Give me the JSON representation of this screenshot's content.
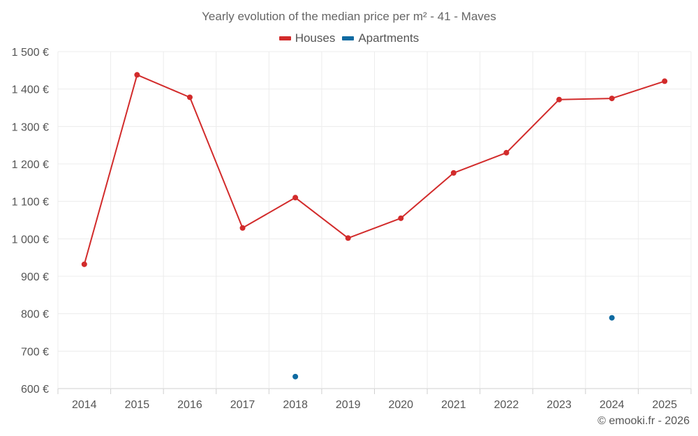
{
  "chart_data": {
    "type": "line",
    "title": "Yearly evolution of the median price per m² - 41 - Maves",
    "categories": [
      "2014",
      "2015",
      "2016",
      "2017",
      "2018",
      "2019",
      "2020",
      "2021",
      "2022",
      "2023",
      "2024",
      "2025"
    ],
    "series": [
      {
        "name": "Houses",
        "color": "#d22b2b",
        "values": [
          932,
          1438,
          1378,
          1029,
          1110,
          1002,
          1055,
          1176,
          1230,
          1372,
          1375,
          1421
        ]
      },
      {
        "name": "Apartments",
        "color": "#0f6aa1",
        "values": [
          null,
          null,
          null,
          null,
          632,
          null,
          null,
          null,
          null,
          null,
          789,
          null
        ]
      }
    ],
    "ylim": [
      600,
      1500
    ],
    "yticks": [
      600,
      700,
      800,
      900,
      1000,
      1100,
      1200,
      1300,
      1400,
      1500
    ],
    "ytick_labels": [
      "600 €",
      "700 €",
      "800 €",
      "900 €",
      "1 000 €",
      "1 100 €",
      "1 200 €",
      "1 300 €",
      "1 400 €",
      "1 500 €"
    ],
    "grid": true,
    "legend_position": "top-center"
  },
  "credit": "© emooki.fr - 2026"
}
